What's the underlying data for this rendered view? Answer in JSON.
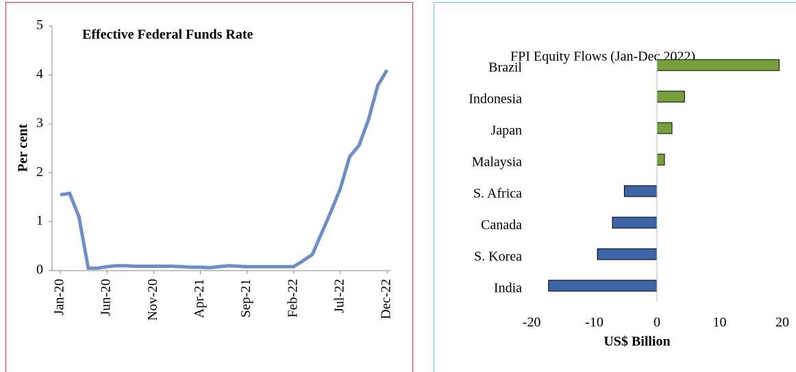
{
  "chart_data": [
    {
      "type": "line",
      "title": "Effective Federal Funds Rate",
      "ylabel": "Per cent",
      "categories": [
        "Jan-20",
        null,
        null,
        null,
        null,
        "Jun-20",
        null,
        null,
        null,
        null,
        "Nov-20",
        null,
        null,
        null,
        null,
        "Apr-21",
        null,
        null,
        null,
        null,
        "Sep-21",
        null,
        null,
        null,
        null,
        "Feb-22",
        null,
        null,
        null,
        null,
        "Jul-22",
        null,
        null,
        null,
        null,
        "Dec-22"
      ],
      "series": [
        {
          "color": "#6f8fc4",
          "values": [
            1.55,
            1.58,
            1.1,
            0.05,
            0.05,
            0.08,
            0.1,
            0.1,
            0.09,
            0.09,
            0.09,
            0.09,
            0.09,
            0.08,
            0.07,
            0.07,
            0.06,
            0.08,
            0.1,
            0.09,
            0.08,
            0.08,
            0.08,
            0.08,
            0.08,
            0.08,
            0.2,
            0.33,
            0.77,
            1.21,
            1.68,
            2.33,
            2.56,
            3.08,
            3.78,
            4.1
          ]
        }
      ],
      "ylim": [
        0,
        5
      ],
      "yticks": [
        0,
        1,
        2,
        3,
        4,
        5
      ]
    },
    {
      "type": "hbar",
      "title": "FPI Equity Flows (Jan-Dec 2022)",
      "xlabel": "US$ Billion",
      "categories": [
        "Brazil",
        "Indonesia",
        "Japan",
        "Malaysia",
        "S. Africa",
        "Canada",
        "S. Korea",
        "India"
      ],
      "values": [
        19.5,
        4.4,
        2.4,
        1.2,
        -5.2,
        -7.1,
        -9.5,
        -17.3
      ],
      "colors": [
        "#77a03c",
        "#77a03c",
        "#77a03c",
        "#77a03c",
        "#3c64a6",
        "#3c64a6",
        "#3c64a6",
        "#3c64a6"
      ],
      "xlim": [
        -20,
        20
      ],
      "xticks": [
        -20,
        -10,
        0,
        10,
        20
      ]
    }
  ]
}
